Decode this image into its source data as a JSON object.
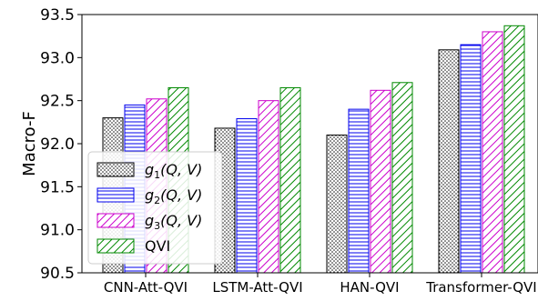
{
  "chart_data": {
    "type": "bar",
    "categories": [
      "CNN-Att-QVI",
      "LSTM-Att-QVI",
      "HAN-QVI",
      "Transformer-QVI"
    ],
    "series": [
      {
        "name": "g1(Q, V)",
        "name_base": "g",
        "name_sub": "1",
        "name_args": "(Q, V)",
        "color": "#000000",
        "pattern": "dots",
        "values": [
          92.3,
          92.18,
          92.1,
          93.09
        ]
      },
      {
        "name": "g2(Q, V)",
        "name_base": "g",
        "name_sub": "2",
        "name_args": "(Q, V)",
        "color": "#0000ee",
        "pattern": "horizontal-lines",
        "values": [
          92.45,
          92.29,
          92.4,
          93.15
        ]
      },
      {
        "name": "g3(Q, V)",
        "name_base": "g",
        "name_sub": "3",
        "name_args": "(Q, V)",
        "color": "#cc00cc",
        "pattern": "diagonal-hatch",
        "values": [
          92.52,
          92.5,
          92.62,
          93.3
        ]
      },
      {
        "name": "QVI",
        "color": "#008800",
        "pattern": "diagonal-hatch",
        "values": [
          92.65,
          92.65,
          92.71,
          93.37
        ]
      }
    ],
    "title": "",
    "xlabel": "",
    "ylabel": "Macro-F",
    "ylim": [
      90.5,
      93.5
    ],
    "yticks": [
      "90.5",
      "91.0",
      "91.5",
      "92.0",
      "92.5",
      "93.0",
      "93.5"
    ],
    "grid": false,
    "legend_position": "lower-left"
  }
}
